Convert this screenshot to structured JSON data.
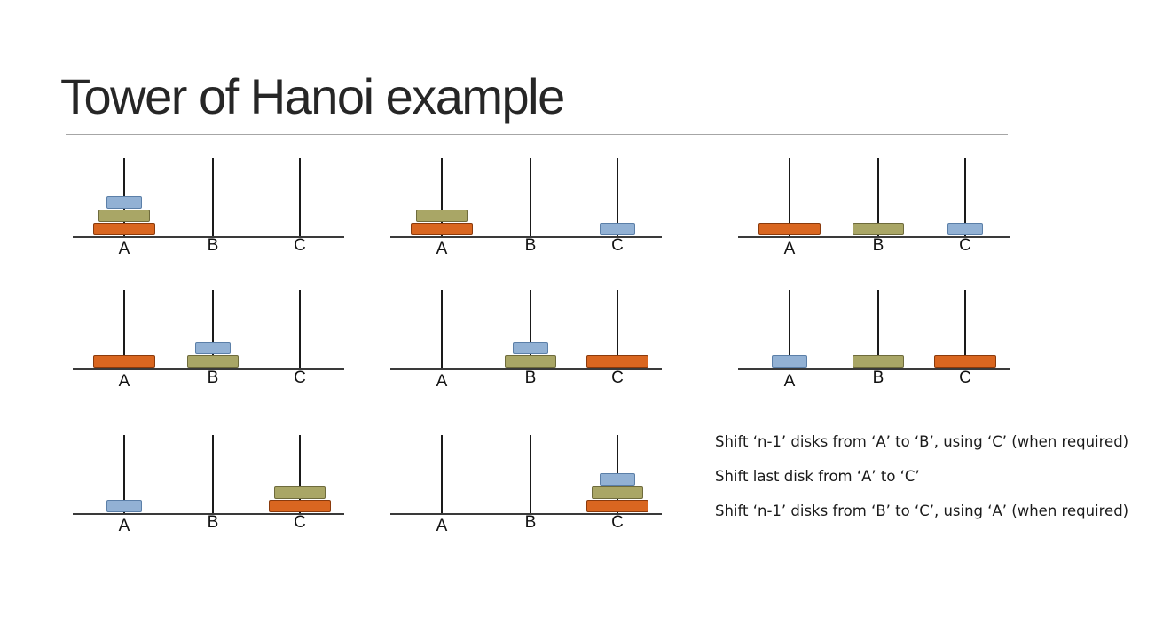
{
  "slide": {
    "title": "Tower of Hanoi example"
  },
  "colors": {
    "small": "#92b1d4",
    "medium": "#a9a666",
    "large": "#d96620",
    "small_border": "#5b7fa8",
    "medium_border": "#6e6b3c",
    "large_border": "#8a3a0c"
  },
  "pegs": [
    "A",
    "B",
    "C"
  ],
  "states": [
    {
      "A": [
        "large",
        "medium",
        "small"
      ],
      "B": [],
      "C": []
    },
    {
      "A": [
        "large",
        "medium"
      ],
      "B": [],
      "C": [
        "small"
      ]
    },
    {
      "A": [
        "large"
      ],
      "B": [
        "medium"
      ],
      "C": [
        "small"
      ]
    },
    {
      "A": [
        "large"
      ],
      "B": [
        "medium",
        "small"
      ],
      "C": []
    },
    {
      "A": [],
      "B": [
        "medium",
        "small"
      ],
      "C": [
        "large"
      ]
    },
    {
      "A": [
        "small"
      ],
      "B": [
        "medium"
      ],
      "C": [
        "large"
      ]
    },
    {
      "A": [
        "small"
      ],
      "B": [],
      "C": [
        "large",
        "medium"
      ]
    },
    {
      "A": [],
      "B": [],
      "C": [
        "large",
        "medium",
        "small"
      ]
    }
  ],
  "notes": [
    "Shift ‘n-1’ disks from ‘A’ to ‘B’, using ‘C’ (when required)",
    "Shift last disk from ‘A’ to ‘C’",
    "Shift ‘n-1’ disks from ‘B’ to ‘C’, using ‘A’ (when required)"
  ]
}
